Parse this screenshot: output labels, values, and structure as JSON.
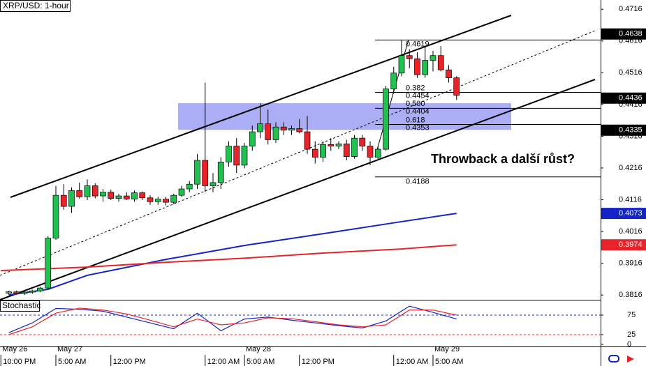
{
  "chart_data": {
    "type": "candlestick",
    "title": "XRP/USD: 1-hour",
    "up_color": "#21c14f",
    "down_color": "#e8232a",
    "open": [
      0.3822,
      0.3826,
      0.3821,
      0.3825,
      0.3829,
      0.3838,
      0.3995,
      0.413,
      0.4095,
      0.4145,
      0.4125,
      0.416,
      0.4128,
      0.414,
      0.412,
      0.4128,
      0.4118,
      0.4138,
      0.4122,
      0.411,
      0.4118,
      0.4108,
      0.413,
      0.415,
      0.4165,
      0.424,
      0.416,
      0.417,
      0.4235,
      0.4285,
      0.4225,
      0.4285,
      0.433,
      0.4355,
      0.4305,
      0.4345,
      0.4335,
      0.434,
      0.433,
      0.4275,
      0.425,
      0.429,
      0.4285,
      0.4292,
      0.4252,
      0.431,
      0.4285,
      0.425,
      0.4275,
      0.4465,
      0.4515,
      0.457,
      0.456,
      0.451,
      0.4555,
      0.457,
      0.4525,
      0.45
    ],
    "high": [
      0.3829,
      0.383,
      0.3828,
      0.3833,
      0.3842,
      0.4001,
      0.416,
      0.4165,
      0.4155,
      0.417,
      0.418,
      0.4168,
      0.415,
      0.4148,
      0.4135,
      0.414,
      0.4145,
      0.4142,
      0.413,
      0.4125,
      0.4125,
      0.4135,
      0.416,
      0.4175,
      0.426,
      0.4485,
      0.42,
      0.425,
      0.43,
      0.431,
      0.4295,
      0.435,
      0.442,
      0.44,
      0.436,
      0.436,
      0.435,
      0.437,
      0.438,
      0.43,
      0.43,
      0.431,
      0.43,
      0.4305,
      0.432,
      0.432,
      0.43,
      0.4285,
      0.4475,
      0.4535,
      0.4619,
      0.459,
      0.458,
      0.46,
      0.4585,
      0.46,
      0.454,
      0.4505
    ],
    "low": [
      0.3818,
      0.3817,
      0.3816,
      0.382,
      0.3825,
      0.3835,
      0.399,
      0.4085,
      0.4075,
      0.412,
      0.4115,
      0.412,
      0.411,
      0.4115,
      0.411,
      0.4115,
      0.411,
      0.4115,
      0.41,
      0.41,
      0.4098,
      0.4102,
      0.4125,
      0.414,
      0.415,
      0.414,
      0.414,
      0.415,
      0.422,
      0.42,
      0.4215,
      0.427,
      0.431,
      0.429,
      0.4295,
      0.432,
      0.432,
      0.4325,
      0.426,
      0.423,
      0.4235,
      0.427,
      0.4275,
      0.424,
      0.4245,
      0.427,
      0.4225,
      0.424,
      0.427,
      0.445,
      0.4505,
      0.453,
      0.45,
      0.45,
      0.452,
      0.452,
      0.4485,
      0.443
    ],
    "close": [
      0.3826,
      0.3821,
      0.3825,
      0.3829,
      0.3838,
      0.3995,
      0.413,
      0.4095,
      0.4145,
      0.4125,
      0.416,
      0.4128,
      0.414,
      0.412,
      0.4128,
      0.4118,
      0.4138,
      0.4122,
      0.411,
      0.4118,
      0.4108,
      0.413,
      0.415,
      0.4165,
      0.424,
      0.416,
      0.417,
      0.4235,
      0.4285,
      0.4225,
      0.4285,
      0.433,
      0.4355,
      0.4305,
      0.4345,
      0.4335,
      0.434,
      0.433,
      0.4275,
      0.425,
      0.429,
      0.4285,
      0.4292,
      0.4252,
      0.431,
      0.4285,
      0.425,
      0.4275,
      0.4465,
      0.4515,
      0.457,
      0.456,
      0.451,
      0.4555,
      0.457,
      0.4525,
      0.45,
      0.4445
    ],
    "ylim": [
      0.3801,
      0.4745
    ],
    "yticks": [
      0.4716,
      0.4616,
      0.4516,
      0.4416,
      0.4316,
      0.4216,
      0.4116,
      0.4016,
      0.3916,
      0.3816
    ],
    "lines": [
      {
        "color": "#1524c8",
        "x": [
          0,
          5,
          10,
          20,
          30,
          40,
          50,
          57
        ],
        "values": [
          0.3816,
          0.3834,
          0.3878,
          0.3928,
          0.3972,
          0.4009,
          0.4047,
          0.4073
        ]
      },
      {
        "color": "#e8232a",
        "x": [
          -1,
          10,
          20,
          30,
          40,
          50,
          57
        ],
        "values": [
          0.3893,
          0.3904,
          0.3919,
          0.3932,
          0.3948,
          0.3961,
          0.3974
        ]
      }
    ],
    "price_tags": [
      {
        "value": 0.4638,
        "color": "#000000"
      },
      {
        "value": 0.4436,
        "color": "#000000"
      },
      {
        "value": 0.4335,
        "color": "#000000"
      },
      {
        "value": 0.4073,
        "color": "#1524c8"
      },
      {
        "value": 0.3974,
        "color": "#e8232a"
      }
    ],
    "fib_levels": [
      0.4619,
      0.4454,
      0.4404,
      0.4353,
      0.4188
    ],
    "fib_ratio_labels": [
      null,
      "0.382",
      "0.500",
      "0.618",
      null
    ],
    "zone_range": [
      0.4336,
      0.442
    ],
    "annotation": "Throwback a další růst?",
    "xticks": [
      {
        "value": -1,
        "label": "10:00 PM"
      },
      {
        "value": 6,
        "label": "5:00 AM"
      },
      {
        "value": 13,
        "label": "12:00 PM"
      },
      {
        "value": 25,
        "label": "12:00 AM"
      },
      {
        "value": 30,
        "label": "5:00 AM"
      },
      {
        "value": 37,
        "label": "12:00 PM"
      },
      {
        "value": 49,
        "label": "12:00 AM"
      },
      {
        "value": 54,
        "label": "5:00 AM"
      }
    ],
    "date_ticks": [
      {
        "value": -1,
        "label": "May 26"
      },
      {
        "value": 6,
        "label": "May 27"
      },
      {
        "value": 30,
        "label": "May 28"
      },
      {
        "value": 54,
        "label": "May 29"
      }
    ],
    "indicator": {
      "type": "line",
      "title": "Stochastic",
      "ylim": [
        0,
        100
      ],
      "yticks": [
        75,
        25,
        0
      ],
      "series": [
        {
          "color": "#1524c8",
          "x": [
            0,
            3,
            6,
            9,
            12,
            15,
            18,
            21,
            24,
            27,
            30,
            33,
            36,
            39,
            42,
            45,
            48,
            51,
            54,
            57
          ],
          "values": [
            30,
            55,
            92,
            90,
            85,
            70,
            55,
            40,
            80,
            35,
            65,
            70,
            62,
            55,
            48,
            42,
            60,
            98,
            82,
            65
          ]
        },
        {
          "color": "#e8232a",
          "x": [
            0,
            3,
            6,
            9,
            12,
            15,
            18,
            21,
            24,
            27,
            30,
            33,
            36,
            39,
            42,
            45,
            48,
            51,
            54,
            57
          ],
          "values": [
            25,
            45,
            80,
            93,
            88,
            78,
            62,
            45,
            65,
            50,
            55,
            68,
            66,
            58,
            50,
            45,
            50,
            88,
            88,
            75
          ]
        }
      ]
    }
  }
}
